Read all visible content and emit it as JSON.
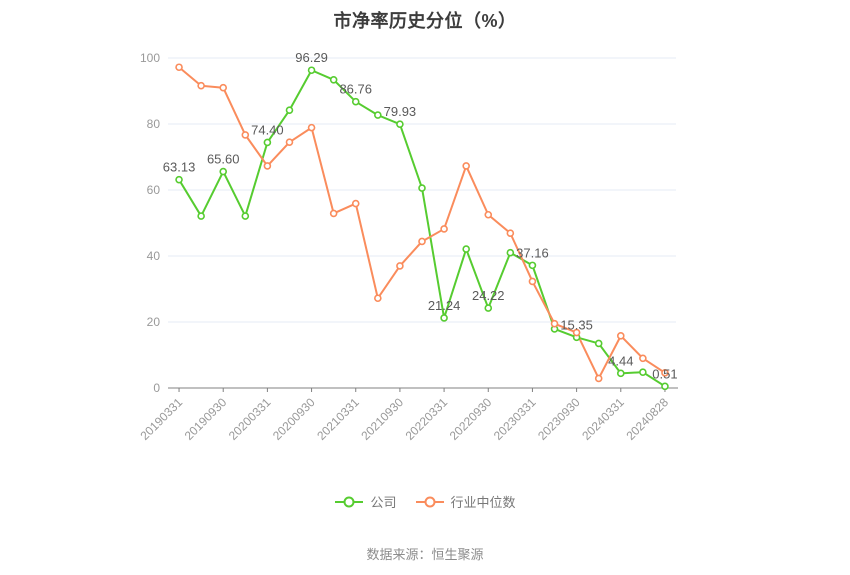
{
  "title": "市净率历史分位（%）",
  "footer": {
    "source": "数据来源：恒生聚源"
  },
  "legend": {
    "items": [
      {
        "label": "公司",
        "color": "#56cc30"
      },
      {
        "label": "行业中位数",
        "color": "#fa8c5c"
      }
    ]
  },
  "styles": {
    "background": "#ffffff",
    "grid_color": "#e5ebf5",
    "axis_color": "#808080",
    "axis_label_color": "#999999",
    "data_label_color": "#5a5a5a",
    "title_color": "#3c3c3c",
    "legend_text_color": "#787878",
    "footer_color": "#8c8c8c",
    "company_color": "#56cc30",
    "industry_color": "#fa8c5c"
  },
  "chart_data": {
    "type": "line",
    "title": "市净率历史分位（%）",
    "xlabel": "",
    "ylabel": "",
    "ylim": [
      0,
      100
    ],
    "yticks": [
      0,
      20,
      40,
      60,
      80,
      100
    ],
    "grid": true,
    "legend_position": "bottom",
    "n_points": 23,
    "x_tick_indices": [
      0,
      2,
      4,
      6,
      8,
      10,
      12,
      14,
      16,
      18,
      20,
      22
    ],
    "x_tick_labels": [
      "20190331",
      "20190930",
      "20200331",
      "20200930",
      "20210331",
      "20210930",
      "20220331",
      "20220930",
      "20230331",
      "20230930",
      "20240331",
      "20240828"
    ],
    "series": [
      {
        "name": "公司",
        "color": "#56cc30",
        "values": [
          63.13,
          52.1,
          65.6,
          52.1,
          74.4,
          84.2,
          96.29,
          93.4,
          86.76,
          82.7,
          79.93,
          60.6,
          21.24,
          42.1,
          24.22,
          41.0,
          37.16,
          17.9,
          15.35,
          13.5,
          4.44,
          4.8,
          0.51
        ],
        "point_labels": [
          {
            "index": 0,
            "text": "63.13"
          },
          {
            "index": 2,
            "text": "65.60"
          },
          {
            "index": 4,
            "text": "74.40"
          },
          {
            "index": 6,
            "text": "96.29"
          },
          {
            "index": 8,
            "text": "86.76"
          },
          {
            "index": 10,
            "text": "79.93"
          },
          {
            "index": 12,
            "text": "21.24"
          },
          {
            "index": 14,
            "text": "24.22"
          },
          {
            "index": 16,
            "text": "37.16"
          },
          {
            "index": 18,
            "text": "15.35"
          },
          {
            "index": 20,
            "text": "4.44"
          },
          {
            "index": 22,
            "text": "0.51"
          }
        ]
      },
      {
        "name": "行业中位数",
        "color": "#fa8c5c",
        "values": [
          97.2,
          91.6,
          91.0,
          76.7,
          67.3,
          74.5,
          78.9,
          52.9,
          55.9,
          27.2,
          37.0,
          44.4,
          48.2,
          67.3,
          52.5,
          46.9,
          32.3,
          19.5,
          16.8,
          2.9,
          15.8,
          9.0,
          4.6
        ]
      }
    ]
  }
}
